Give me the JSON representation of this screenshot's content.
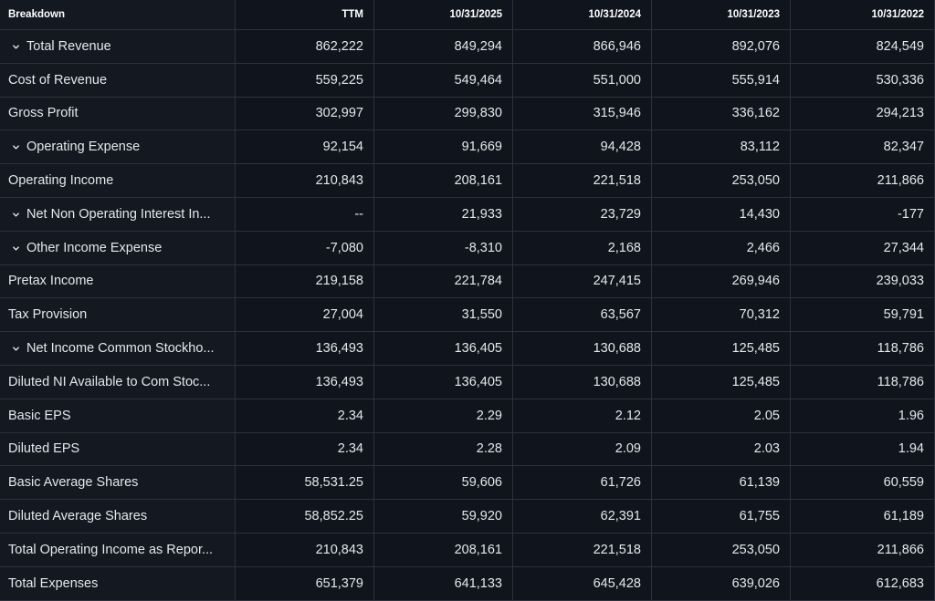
{
  "table": {
    "headers": [
      "Breakdown",
      "TTM",
      "10/31/2025",
      "10/31/2024",
      "10/31/2023",
      "10/31/2022"
    ],
    "rows": [
      {
        "label": "Total Revenue",
        "expandable": true,
        "values": [
          "862,222",
          "849,294",
          "866,946",
          "892,076",
          "824,549"
        ]
      },
      {
        "label": "Cost of Revenue",
        "expandable": false,
        "values": [
          "559,225",
          "549,464",
          "551,000",
          "555,914",
          "530,336"
        ]
      },
      {
        "label": "Gross Profit",
        "expandable": false,
        "values": [
          "302,997",
          "299,830",
          "315,946",
          "336,162",
          "294,213"
        ]
      },
      {
        "label": "Operating Expense",
        "expandable": true,
        "values": [
          "92,154",
          "91,669",
          "94,428",
          "83,112",
          "82,347"
        ]
      },
      {
        "label": "Operating Income",
        "expandable": false,
        "values": [
          "210,843",
          "208,161",
          "221,518",
          "253,050",
          "211,866"
        ]
      },
      {
        "label": "Net Non Operating Interest In...",
        "expandable": true,
        "values": [
          "--",
          "21,933",
          "23,729",
          "14,430",
          "-177"
        ]
      },
      {
        "label": "Other Income Expense",
        "expandable": true,
        "values": [
          "-7,080",
          "-8,310",
          "2,168",
          "2,466",
          "27,344"
        ]
      },
      {
        "label": "Pretax Income",
        "expandable": false,
        "values": [
          "219,158",
          "221,784",
          "247,415",
          "269,946",
          "239,033"
        ]
      },
      {
        "label": "Tax Provision",
        "expandable": false,
        "values": [
          "27,004",
          "31,550",
          "63,567",
          "70,312",
          "59,791"
        ]
      },
      {
        "label": "Net Income Common Stockho...",
        "expandable": true,
        "values": [
          "136,493",
          "136,405",
          "130,688",
          "125,485",
          "118,786"
        ]
      },
      {
        "label": "Diluted NI Available to Com Stoc...",
        "expandable": false,
        "values": [
          "136,493",
          "136,405",
          "130,688",
          "125,485",
          "118,786"
        ]
      },
      {
        "label": "Basic EPS",
        "expandable": false,
        "values": [
          "2.34",
          "2.29",
          "2.12",
          "2.05",
          "1.96"
        ]
      },
      {
        "label": "Diluted EPS",
        "expandable": false,
        "values": [
          "2.34",
          "2.28",
          "2.09",
          "2.03",
          "1.94"
        ]
      },
      {
        "label": "Basic Average Shares",
        "expandable": false,
        "values": [
          "58,531.25",
          "59,606",
          "61,726",
          "61,139",
          "60,559"
        ]
      },
      {
        "label": "Diluted Average Shares",
        "expandable": false,
        "values": [
          "58,852.25",
          "59,920",
          "62,391",
          "61,755",
          "61,189"
        ]
      },
      {
        "label": "Total Operating Income as Repor...",
        "expandable": false,
        "values": [
          "210,843",
          "208,161",
          "221,518",
          "253,050",
          "211,866"
        ]
      },
      {
        "label": "Total Expenses",
        "expandable": false,
        "values": [
          "651,379",
          "641,133",
          "645,428",
          "639,026",
          "612,683"
        ]
      }
    ]
  },
  "icons": {
    "expand": "chevron-down-icon"
  },
  "colors": {
    "background": "#10141c",
    "border": "#2c313b",
    "text": "#e5e7ea"
  }
}
